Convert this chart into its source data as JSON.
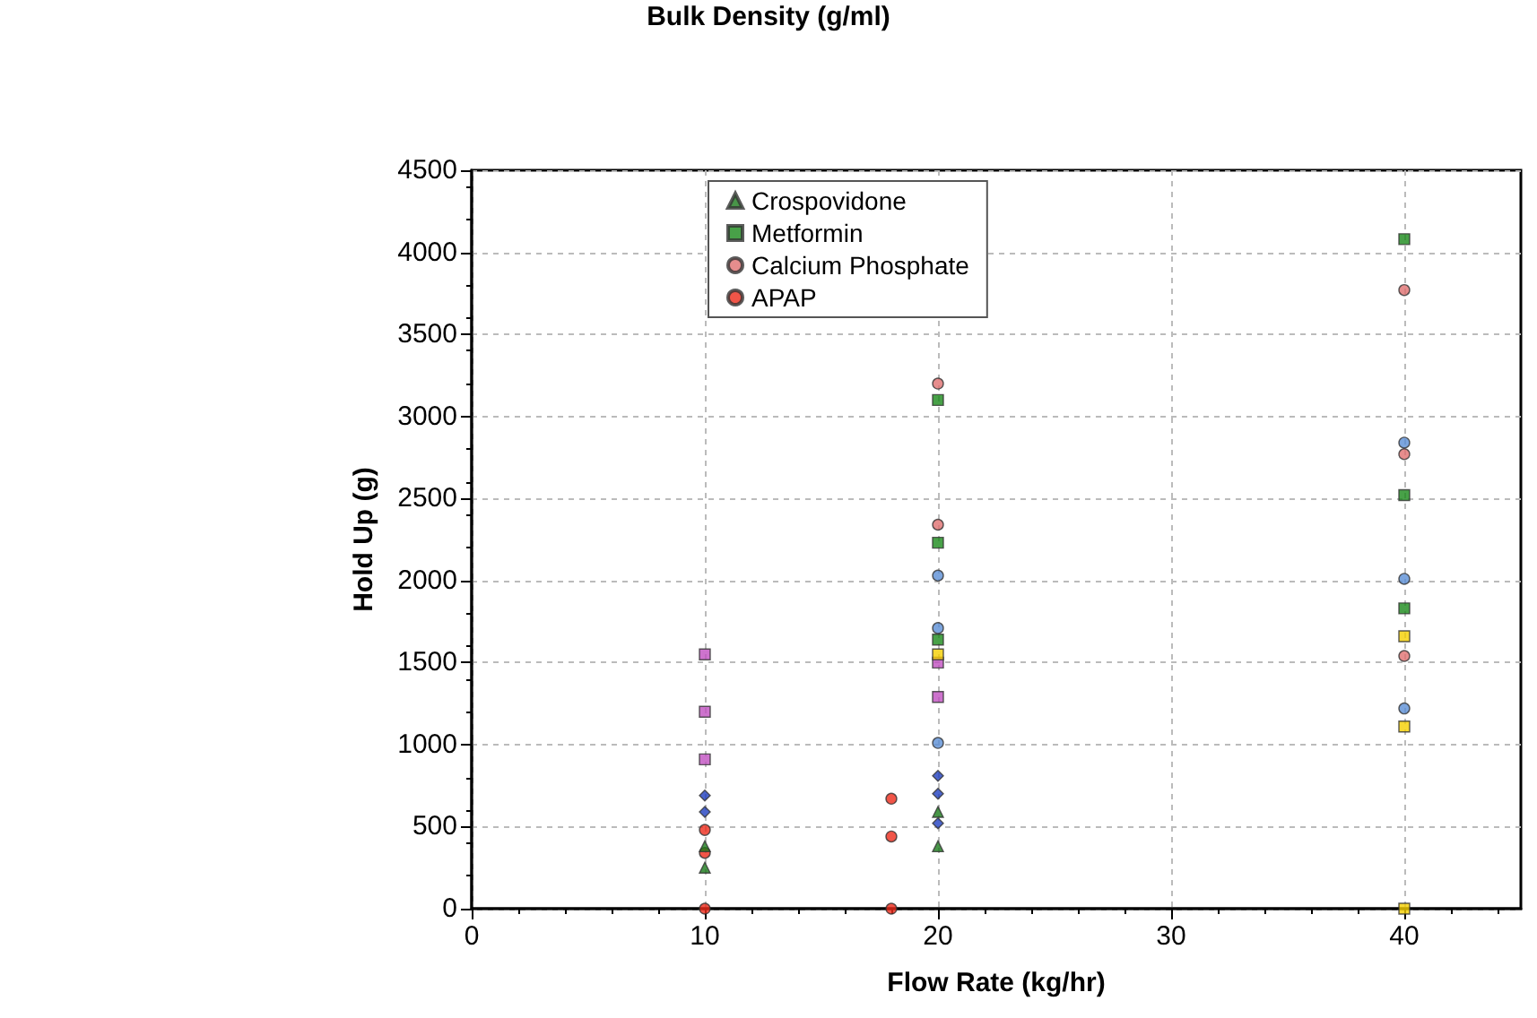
{
  "chart_data": {
    "type": "scatter",
    "xlabel": "Flow Rate (kg/hr)",
    "ylabel": "Hold Up (g)",
    "annotations": [
      "Bulk Density (g/ml)"
    ],
    "xlim": [
      0,
      45
    ],
    "xticks": [
      0,
      10,
      20,
      30,
      40
    ],
    "ylim": [
      0,
      4500
    ],
    "yticks": [
      0,
      500,
      1000,
      1500,
      2000,
      2500,
      3000,
      3500,
      4000,
      4500
    ],
    "grid": true,
    "legend": "top",
    "series": [
      {
        "color": "#1f3fbf",
        "marker": "diamond",
        "x": [
          10,
          10,
          20,
          20,
          20
        ],
        "values": [
          690,
          590,
          810,
          700,
          520
        ]
      },
      {
        "color": "#f5d000",
        "marker": "square",
        "x": [
          20,
          40,
          40,
          40
        ],
        "values": [
          1550,
          1660,
          1110,
          0
        ]
      },
      {
        "name": "Crospovidone",
        "color": "#1a7a1a",
        "marker": "triangle",
        "x": [
          10,
          10,
          20,
          20
        ],
        "values": [
          380,
          250,
          590,
          380
        ]
      },
      {
        "color": "#5b8fd6",
        "marker": "circle",
        "x": [
          20,
          20,
          20,
          40,
          40,
          40
        ],
        "values": [
          2030,
          1710,
          1010,
          2840,
          2010,
          1220
        ]
      },
      {
        "name": "Metformin",
        "color": "#1a8a1a",
        "marker": "square",
        "x": [
          20,
          20,
          20,
          40,
          40,
          40
        ],
        "values": [
          3100,
          2230,
          1640,
          4080,
          2520,
          1830
        ]
      },
      {
        "name": "Calcium Phosphate",
        "color": "#e07070",
        "marker": "circle",
        "x": [
          20,
          20,
          40,
          40,
          40
        ],
        "values": [
          3200,
          2340,
          3770,
          2770,
          1540
        ]
      },
      {
        "color": "#c050c0",
        "marker": "square",
        "x": [
          10,
          10,
          10,
          20,
          20
        ],
        "values": [
          1550,
          1200,
          910,
          1500,
          1290
        ]
      },
      {
        "name": "APAP",
        "color": "#ee2a1a",
        "marker": "circle",
        "x": [
          10,
          10,
          10,
          18,
          18,
          18
        ],
        "values": [
          480,
          340,
          0,
          670,
          440,
          0
        ]
      }
    ]
  }
}
